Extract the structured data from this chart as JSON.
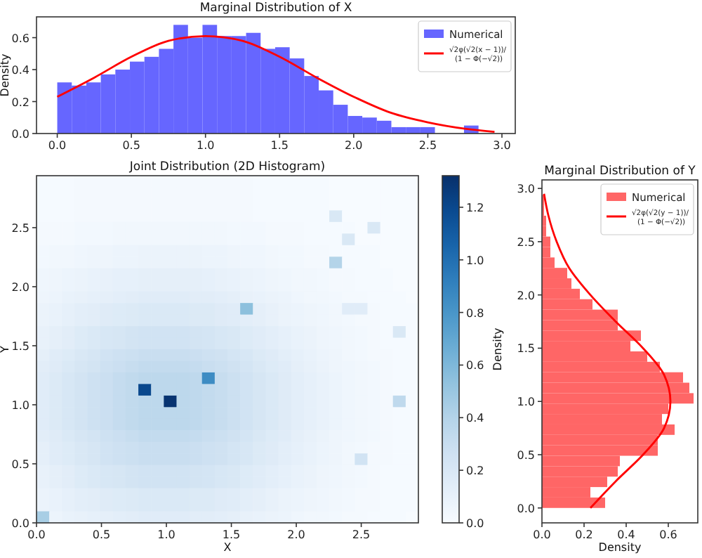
{
  "chart_data": [
    {
      "type": "histogram",
      "title": "Marginal Distribution of X",
      "ylabel": "Density",
      "legend": "top right",
      "bins": [
        0,
        0.098,
        0.196,
        0.294,
        0.392,
        0.49,
        0.588,
        0.686,
        0.784,
        0.882,
        0.98,
        1.078,
        1.176,
        1.274,
        1.372,
        1.47,
        1.568,
        1.666,
        1.764,
        1.862,
        1.96,
        2.058,
        2.156,
        2.254,
        2.352,
        2.45,
        2.548,
        2.646,
        2.744,
        2.842,
        2.94
      ],
      "xlim": [
        -0.14,
        3.09
      ],
      "ylim": [
        0,
        0.73
      ],
      "xticks": [
        {
          "value": 0,
          "label": "0.0"
        },
        {
          "value": 0.5,
          "label": "0.5"
        },
        {
          "value": 1,
          "label": "1.0"
        },
        {
          "value": 1.5,
          "label": "1.5"
        },
        {
          "value": 2,
          "label": "2.0"
        },
        {
          "value": 2.5,
          "label": "2.5"
        },
        {
          "value": 3,
          "label": "3.0"
        }
      ],
      "yticks": [
        {
          "value": 0,
          "label": "0.0"
        },
        {
          "value": 0.2,
          "label": "0.2"
        },
        {
          "value": 0.4,
          "label": "0.4"
        },
        {
          "value": 0.6,
          "label": "0.6"
        }
      ],
      "series": [
        {
          "type": "histogram",
          "name": "Numerical",
          "color": "#6666ff",
          "values": [
            0.32,
            0.3,
            0.32,
            0.37,
            0.4,
            0.45,
            0.48,
            0.53,
            0.68,
            0.6,
            0.68,
            0.61,
            0.61,
            0.63,
            0.53,
            0.54,
            0.47,
            0.36,
            0.27,
            0.18,
            0.11,
            0.1,
            0.08,
            0.04,
            0.04,
            0.04,
            0,
            0,
            0.05,
            0
          ]
        },
        {
          "type": "line",
          "name": "√2φ(√2(x − 1))/(1 − Φ(−√2))",
          "color": "#ff0000",
          "x": [
            0,
            0.25,
            0.5,
            0.75,
            1,
            1.25,
            1.5,
            1.75,
            2,
            2.25,
            2.5,
            2.75,
            2.95
          ],
          "values": [
            0.23,
            0.35,
            0.48,
            0.58,
            0.61,
            0.58,
            0.48,
            0.35,
            0.23,
            0.13,
            0.07,
            0.03,
            0.01
          ]
        }
      ]
    },
    {
      "type": "heatmap",
      "title": "Joint Distribution (2D Histogram)",
      "xlabel": "X",
      "ylabel": "Y",
      "clabel": "Density",
      "xlim": [
        0,
        2.94
      ],
      "ylim": [
        0,
        2.94
      ],
      "xticks": [
        {
          "value": 0,
          "label": "0.0"
        },
        {
          "value": 0.5,
          "label": "0.5"
        },
        {
          "value": 1,
          "label": "1.0"
        },
        {
          "value": 1.5,
          "label": "1.5"
        },
        {
          "value": 2,
          "label": "2.0"
        },
        {
          "value": 2.5,
          "label": "2.5"
        }
      ],
      "yticks": [
        {
          "value": 0,
          "label": "0.0"
        },
        {
          "value": 0.5,
          "label": "0.5"
        },
        {
          "value": 1,
          "label": "1.0"
        },
        {
          "value": 1.5,
          "label": "1.5"
        },
        {
          "value": 2,
          "label": "2.0"
        },
        {
          "value": 2.5,
          "label": "2.5"
        }
      ],
      "clim": [
        0,
        1.32
      ],
      "cticks": [
        {
          "value": 0,
          "label": "0.0"
        },
        {
          "value": 0.2,
          "label": "0.2"
        },
        {
          "value": 0.4,
          "label": "0.4"
        },
        {
          "value": 0.6,
          "label": "0.6"
        },
        {
          "value": 0.8,
          "label": "0.8"
        },
        {
          "value": 1,
          "label": "1.0"
        },
        {
          "value": 1.2,
          "label": "1.2"
        }
      ],
      "cells": [
        [
          0.01,
          0.01,
          0.01,
          0.02,
          0.02,
          0.02,
          0.02,
          0.02,
          0.02,
          0.02,
          0.02,
          0.02,
          0.02,
          0.02,
          0.02,
          0.02,
          0.02,
          0.01,
          0.01,
          0.01,
          0.01,
          0.01,
          0.01,
          0,
          0,
          0,
          0,
          0,
          0,
          0
        ],
        [
          0.01,
          0.01,
          0.01,
          0.02,
          0.02,
          0.02,
          0.02,
          0.02,
          0.02,
          0.02,
          0.02,
          0.02,
          0.02,
          0.02,
          0.02,
          0.02,
          0.02,
          0.01,
          0.01,
          0.01,
          0.01,
          0.01,
          0.01,
          0,
          0,
          0,
          0,
          0,
          0,
          0
        ],
        [
          0.01,
          0.01,
          0.01,
          0.02,
          0.02,
          0.02,
          0.02,
          0.02,
          0.02,
          0.02,
          0.02,
          0.02,
          0.02,
          0.02,
          0.02,
          0.02,
          0.02,
          0.01,
          0.01,
          0.01,
          0.01,
          0.01,
          0.01,
          0,
          0,
          0,
          0,
          0,
          0,
          0
        ],
        [
          0.01,
          0.01,
          0.01,
          0.02,
          0.02,
          0.02,
          0.02,
          0.02,
          0.02,
          0.02,
          0.02,
          0.02,
          0.02,
          0.02,
          0.02,
          0.02,
          0.02,
          0.01,
          0.01,
          0.01,
          0.01,
          0.01,
          0.01,
          0.2,
          0,
          0,
          0,
          0,
          0,
          0
        ],
        [
          0.02,
          0.02,
          0.02,
          0.03,
          0.03,
          0.03,
          0.04,
          0.04,
          0.04,
          0.04,
          0.04,
          0.04,
          0.04,
          0.04,
          0.04,
          0.03,
          0.03,
          0.03,
          0.02,
          0.02,
          0.02,
          0.01,
          0.01,
          0.01,
          0.01,
          0,
          0.2,
          0,
          0,
          0
        ],
        [
          0.02,
          0.02,
          0.02,
          0.03,
          0.03,
          0.03,
          0.04,
          0.04,
          0.04,
          0.04,
          0.04,
          0.04,
          0.04,
          0.04,
          0.04,
          0.03,
          0.03,
          0.03,
          0.02,
          0.02,
          0.02,
          0.01,
          0.01,
          0.01,
          0.2,
          0,
          0,
          0,
          0,
          0
        ],
        [
          0.03,
          0.04,
          0.04,
          0.05,
          0.06,
          0.06,
          0.07,
          0.07,
          0.08,
          0.08,
          0.08,
          0.08,
          0.08,
          0.07,
          0.07,
          0.06,
          0.05,
          0.05,
          0.04,
          0.03,
          0.03,
          0.02,
          0.02,
          0.01,
          0.01,
          0.01,
          0.01,
          0,
          0,
          0
        ],
        [
          0.03,
          0.04,
          0.04,
          0.05,
          0.06,
          0.06,
          0.07,
          0.07,
          0.08,
          0.08,
          0.08,
          0.08,
          0.08,
          0.07,
          0.07,
          0.06,
          0.05,
          0.05,
          0.04,
          0.03,
          0.03,
          0.02,
          0.02,
          0.4,
          0.01,
          0.01,
          0.01,
          0,
          0,
          0
        ],
        [
          0.05,
          0.06,
          0.07,
          0.08,
          0.09,
          0.1,
          0.11,
          0.11,
          0.12,
          0.12,
          0.12,
          0.12,
          0.12,
          0.11,
          0.1,
          0.09,
          0.08,
          0.07,
          0.06,
          0.05,
          0.04,
          0.04,
          0.03,
          0.02,
          0.02,
          0.01,
          0.01,
          0.01,
          0,
          0
        ],
        [
          0.05,
          0.06,
          0.07,
          0.08,
          0.09,
          0.1,
          0.11,
          0.11,
          0.12,
          0.12,
          0.12,
          0.12,
          0.12,
          0.11,
          0.1,
          0.09,
          0.08,
          0.07,
          0.06,
          0.05,
          0.04,
          0.04,
          0.03,
          0.02,
          0.02,
          0.01,
          0.01,
          0.01,
          0,
          0
        ],
        [
          0.06,
          0.07,
          0.09,
          0.1,
          0.11,
          0.12,
          0.13,
          0.14,
          0.15,
          0.15,
          0.15,
          0.15,
          0.14,
          0.14,
          0.13,
          0.12,
          0.1,
          0.09,
          0.08,
          0.07,
          0.05,
          0.04,
          0.04,
          0.03,
          0.02,
          0.02,
          0.01,
          0.01,
          0.01,
          0
        ],
        [
          0.08,
          0.09,
          0.11,
          0.13,
          0.14,
          0.16,
          0.17,
          0.18,
          0.19,
          0.19,
          0.19,
          0.19,
          0.18,
          0.18,
          0.16,
          0.15,
          0.55,
          0.12,
          0.1,
          0.08,
          0.07,
          0.06,
          0.05,
          0.04,
          0.15,
          0.15,
          0.02,
          0.01,
          0.01,
          0.01
        ],
        [
          0.08,
          0.09,
          0.11,
          0.13,
          0.14,
          0.16,
          0.17,
          0.18,
          0.19,
          0.19,
          0.19,
          0.19,
          0.18,
          0.18,
          0.16,
          0.15,
          0.13,
          0.12,
          0.1,
          0.08,
          0.07,
          0.06,
          0.05,
          0.04,
          0.03,
          0.02,
          0.02,
          0.01,
          0.01,
          0.01
        ],
        [
          0.1,
          0.12,
          0.14,
          0.17,
          0.19,
          0.21,
          0.22,
          0.24,
          0.25,
          0.25,
          0.25,
          0.25,
          0.24,
          0.23,
          0.21,
          0.2,
          0.17,
          0.15,
          0.13,
          0.11,
          0.09,
          0.08,
          0.06,
          0.05,
          0.04,
          0.03,
          0.02,
          0.01,
          0.2,
          0.01
        ],
        [
          0.1,
          0.12,
          0.14,
          0.17,
          0.19,
          0.21,
          0.22,
          0.24,
          0.25,
          0.25,
          0.25,
          0.25,
          0.24,
          0.23,
          0.21,
          0.2,
          0.17,
          0.15,
          0.13,
          0.11,
          0.09,
          0.08,
          0.06,
          0.05,
          0.04,
          0.03,
          0.02,
          0.01,
          0.01,
          0.01
        ],
        [
          0.12,
          0.15,
          0.17,
          0.2,
          0.22,
          0.25,
          0.27,
          0.28,
          0.3,
          0.3,
          0.3,
          0.3,
          0.29,
          0.27,
          0.26,
          0.23,
          0.21,
          0.18,
          0.16,
          0.13,
          0.11,
          0.09,
          0.07,
          0.06,
          0.04,
          0.03,
          0.02,
          0.02,
          0.01,
          0.01
        ],
        [
          0.14,
          0.16,
          0.19,
          0.22,
          0.24,
          0.27,
          0.29,
          0.31,
          0.33,
          0.33,
          0.33,
          0.33,
          0.32,
          0.3,
          0.28,
          0.26,
          0.23,
          0.2,
          0.17,
          0.15,
          0.12,
          0.1,
          0.08,
          0.06,
          0.05,
          0.04,
          0.03,
          0.02,
          0.01,
          0.01
        ],
        [
          0.15,
          0.18,
          0.21,
          0.24,
          0.27,
          0.29,
          0.32,
          0.34,
          0.36,
          0.36,
          0.36,
          0.36,
          0.35,
          0.85,
          0.31,
          0.28,
          0.25,
          0.22,
          0.19,
          0.16,
          0.13,
          0.11,
          0.09,
          0.07,
          0.05,
          0.04,
          0.03,
          0.02,
          0.01,
          0.01
        ],
        [
          0.15,
          0.18,
          0.21,
          0.24,
          0.27,
          0.29,
          0.32,
          0.34,
          1.2,
          0.36,
          0.36,
          0.36,
          0.35,
          0.33,
          0.31,
          0.28,
          0.25,
          0.22,
          0.19,
          0.16,
          0.13,
          0.11,
          0.09,
          0.07,
          0.05,
          0.04,
          0.03,
          0.02,
          0.01,
          0.01
        ],
        [
          0.15,
          0.18,
          0.21,
          0.24,
          0.27,
          0.29,
          0.32,
          0.34,
          0.36,
          0.36,
          1.3,
          0.36,
          0.35,
          0.33,
          0.31,
          0.28,
          0.25,
          0.22,
          0.19,
          0.16,
          0.13,
          0.11,
          0.09,
          0.07,
          0.05,
          0.04,
          0.03,
          0.02,
          0.35,
          0.01
        ],
        [
          0.15,
          0.18,
          0.21,
          0.24,
          0.27,
          0.29,
          0.32,
          0.34,
          0.36,
          0.36,
          0.36,
          0.36,
          0.35,
          0.33,
          0.31,
          0.28,
          0.25,
          0.22,
          0.19,
          0.16,
          0.13,
          0.11,
          0.09,
          0.07,
          0.05,
          0.04,
          0.03,
          0.02,
          0.01,
          0.01
        ],
        [
          0.15,
          0.18,
          0.21,
          0.24,
          0.27,
          0.29,
          0.32,
          0.34,
          0.36,
          0.36,
          0.36,
          0.36,
          0.35,
          0.33,
          0.31,
          0.28,
          0.25,
          0.22,
          0.19,
          0.16,
          0.13,
          0.11,
          0.09,
          0.07,
          0.05,
          0.04,
          0.03,
          0.02,
          0.01,
          0.01
        ],
        [
          0.14,
          0.16,
          0.19,
          0.22,
          0.24,
          0.27,
          0.29,
          0.31,
          0.33,
          0.33,
          0.33,
          0.33,
          0.32,
          0.3,
          0.28,
          0.26,
          0.23,
          0.2,
          0.17,
          0.15,
          0.12,
          0.1,
          0.08,
          0.06,
          0.05,
          0.04,
          0.03,
          0.02,
          0.01,
          0.01
        ],
        [
          0.12,
          0.15,
          0.17,
          0.2,
          0.22,
          0.25,
          0.27,
          0.28,
          0.3,
          0.3,
          0.3,
          0.3,
          0.29,
          0.27,
          0.26,
          0.23,
          0.21,
          0.18,
          0.16,
          0.13,
          0.11,
          0.09,
          0.07,
          0.06,
          0.04,
          0.03,
          0.02,
          0.02,
          0.01,
          0.01
        ],
        [
          0.12,
          0.15,
          0.17,
          0.2,
          0.22,
          0.25,
          0.27,
          0.28,
          0.3,
          0.3,
          0.3,
          0.3,
          0.29,
          0.27,
          0.26,
          0.23,
          0.21,
          0.18,
          0.16,
          0.13,
          0.11,
          0.09,
          0.07,
          0.06,
          0.04,
          0.25,
          0.02,
          0.02,
          0.01,
          0.01
        ],
        [
          0.1,
          0.12,
          0.14,
          0.17,
          0.19,
          0.21,
          0.22,
          0.24,
          0.25,
          0.25,
          0.25,
          0.25,
          0.24,
          0.23,
          0.21,
          0.2,
          0.17,
          0.15,
          0.13,
          0.11,
          0.09,
          0.08,
          0.06,
          0.05,
          0.04,
          0.03,
          0.02,
          0.01,
          0.01,
          0.01
        ],
        [
          0.1,
          0.12,
          0.14,
          0.17,
          0.19,
          0.21,
          0.22,
          0.24,
          0.25,
          0.25,
          0.25,
          0.25,
          0.24,
          0.23,
          0.21,
          0.2,
          0.17,
          0.15,
          0.13,
          0.11,
          0.09,
          0.08,
          0.06,
          0.05,
          0.04,
          0.03,
          0.02,
          0.01,
          0.01,
          0.01
        ],
        [
          0.08,
          0.09,
          0.11,
          0.13,
          0.14,
          0.16,
          0.17,
          0.18,
          0.19,
          0.19,
          0.19,
          0.19,
          0.18,
          0.18,
          0.16,
          0.15,
          0.13,
          0.12,
          0.1,
          0.08,
          0.07,
          0.06,
          0.05,
          0.04,
          0.03,
          0.02,
          0.02,
          0.01,
          0.01,
          0.01
        ],
        [
          0.08,
          0.09,
          0.11,
          0.13,
          0.14,
          0.16,
          0.17,
          0.18,
          0.19,
          0.19,
          0.19,
          0.19,
          0.18,
          0.18,
          0.16,
          0.15,
          0.13,
          0.12,
          0.1,
          0.08,
          0.07,
          0.06,
          0.05,
          0.04,
          0.03,
          0.02,
          0.02,
          0.01,
          0.01,
          0.01
        ],
        [
          0.45,
          0.07,
          0.09,
          0.1,
          0.11,
          0.12,
          0.13,
          0.14,
          0.15,
          0.15,
          0.15,
          0.15,
          0.14,
          0.14,
          0.13,
          0.12,
          0.1,
          0.09,
          0.08,
          0.07,
          0.05,
          0.04,
          0.04,
          0.03,
          0.02,
          0.02,
          0.01,
          0.01,
          0.01,
          0
        ]
      ]
    },
    {
      "type": "histogram",
      "orientation": "horizontal",
      "title": "Marginal Distribution of Y",
      "xlabel": "Density",
      "legend": "top right",
      "bins": [
        0,
        0.098,
        0.196,
        0.294,
        0.392,
        0.49,
        0.588,
        0.686,
        0.784,
        0.882,
        0.98,
        1.078,
        1.176,
        1.274,
        1.372,
        1.47,
        1.568,
        1.666,
        1.764,
        1.862,
        1.96,
        2.058,
        2.156,
        2.254,
        2.352,
        2.45,
        2.548,
        2.646,
        2.744,
        2.842,
        2.94
      ],
      "xlim": [
        0,
        0.74
      ],
      "ylim": [
        -0.14,
        3.08
      ],
      "xticks": [
        {
          "value": 0,
          "label": "0.0"
        },
        {
          "value": 0.2,
          "label": "0.2"
        },
        {
          "value": 0.4,
          "label": "0.4"
        },
        {
          "value": 0.6,
          "label": "0.6"
        }
      ],
      "yticks": [
        {
          "value": 0,
          "label": "0.0"
        },
        {
          "value": 0.5,
          "label": "0.5"
        },
        {
          "value": 1,
          "label": "1.0"
        },
        {
          "value": 1.5,
          "label": "1.5"
        },
        {
          "value": 2,
          "label": "2.0"
        },
        {
          "value": 2.5,
          "label": "2.5"
        },
        {
          "value": 3,
          "label": "3.0"
        }
      ],
      "series": [
        {
          "type": "histogram",
          "name": "Numerical",
          "color": "#ff6666",
          "values": [
            0.3,
            0.23,
            0.31,
            0.36,
            0.37,
            0.55,
            0.55,
            0.63,
            0.57,
            0.6,
            0.72,
            0.7,
            0.67,
            0.56,
            0.5,
            0.42,
            0.47,
            0.36,
            0.36,
            0.24,
            0.18,
            0.14,
            0.12,
            0.06,
            0.04,
            0.04,
            0.02,
            0.02,
            0.01,
            0.01
          ]
        },
        {
          "type": "line",
          "name": "√2φ(√2(y − 1))/(1 − Φ(−√2))",
          "color": "#ff0000",
          "x": [
            0,
            0.25,
            0.5,
            0.75,
            1,
            1.25,
            1.5,
            1.75,
            2,
            2.25,
            2.5,
            2.75,
            2.95
          ],
          "values": [
            0.23,
            0.35,
            0.48,
            0.58,
            0.61,
            0.58,
            0.48,
            0.35,
            0.23,
            0.13,
            0.07,
            0.03,
            0.01
          ]
        }
      ]
    }
  ]
}
